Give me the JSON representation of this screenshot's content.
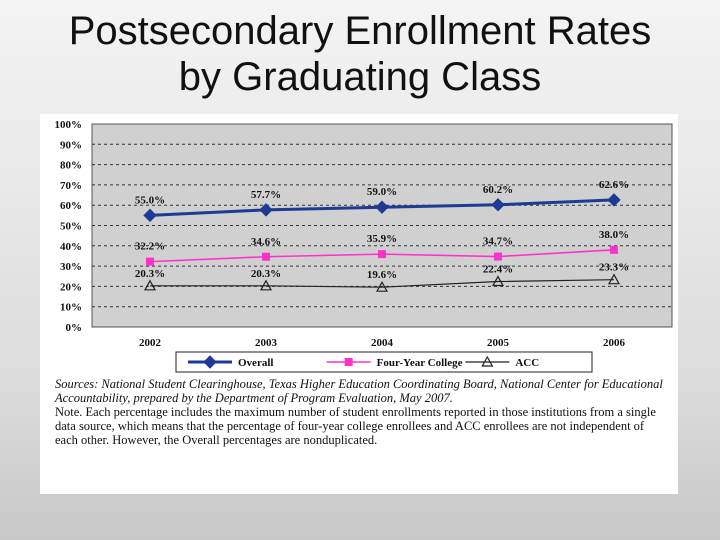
{
  "slide": {
    "title_line1": "Postsecondary Enrollment Rates",
    "title_line2": "by Graduating Class"
  },
  "chart_data": {
    "type": "line",
    "title": "",
    "xlabel": "",
    "ylabel": "",
    "categories": [
      "2002",
      "2003",
      "2004",
      "2005",
      "2006"
    ],
    "ylim": [
      0,
      100
    ],
    "yticks": [
      "0%",
      "10%",
      "20%",
      "30%",
      "40%",
      "50%",
      "60%",
      "70%",
      "80%",
      "90%",
      "100%"
    ],
    "grid": true,
    "legend_position": "bottom",
    "series": [
      {
        "name": "Overall",
        "values": [
          55.0,
          57.7,
          59.0,
          60.2,
          62.6
        ],
        "labels": [
          "55.0%",
          "57.7%",
          "59.0%",
          "60.2%",
          "62.6%"
        ],
        "color": "#1f3a93",
        "marker": "diamond"
      },
      {
        "name": "Four-Year College",
        "values": [
          32.2,
          34.6,
          35.9,
          34.7,
          38.0
        ],
        "labels": [
          "32.2%",
          "34.6%",
          "35.9%",
          "34.7%",
          "38.0%"
        ],
        "color": "#ff33cc",
        "marker": "square"
      },
      {
        "name": "ACC",
        "values": [
          20.3,
          20.3,
          19.6,
          22.4,
          23.3
        ],
        "labels": [
          "20.3%",
          "20.3%",
          "19.6%",
          "22.4%",
          "23.3%"
        ],
        "color": "#222222",
        "marker": "triangle"
      }
    ],
    "plot_background": "#d0d0d0"
  },
  "notes": {
    "sources": "Sources: National Student Clearinghouse, Texas Higher Education Coordinating Board, National Center for Educational Accountability, prepared by the Department of Program Evaluation, May 2007.",
    "note": "Note. Each percentage includes the maximum number of student enrollments reported in those institutions from a single data source, which means that the percentage of four-year college enrollees and ACC enrollees are not independent of each other. However, the Overall percentages are nonduplicated."
  }
}
